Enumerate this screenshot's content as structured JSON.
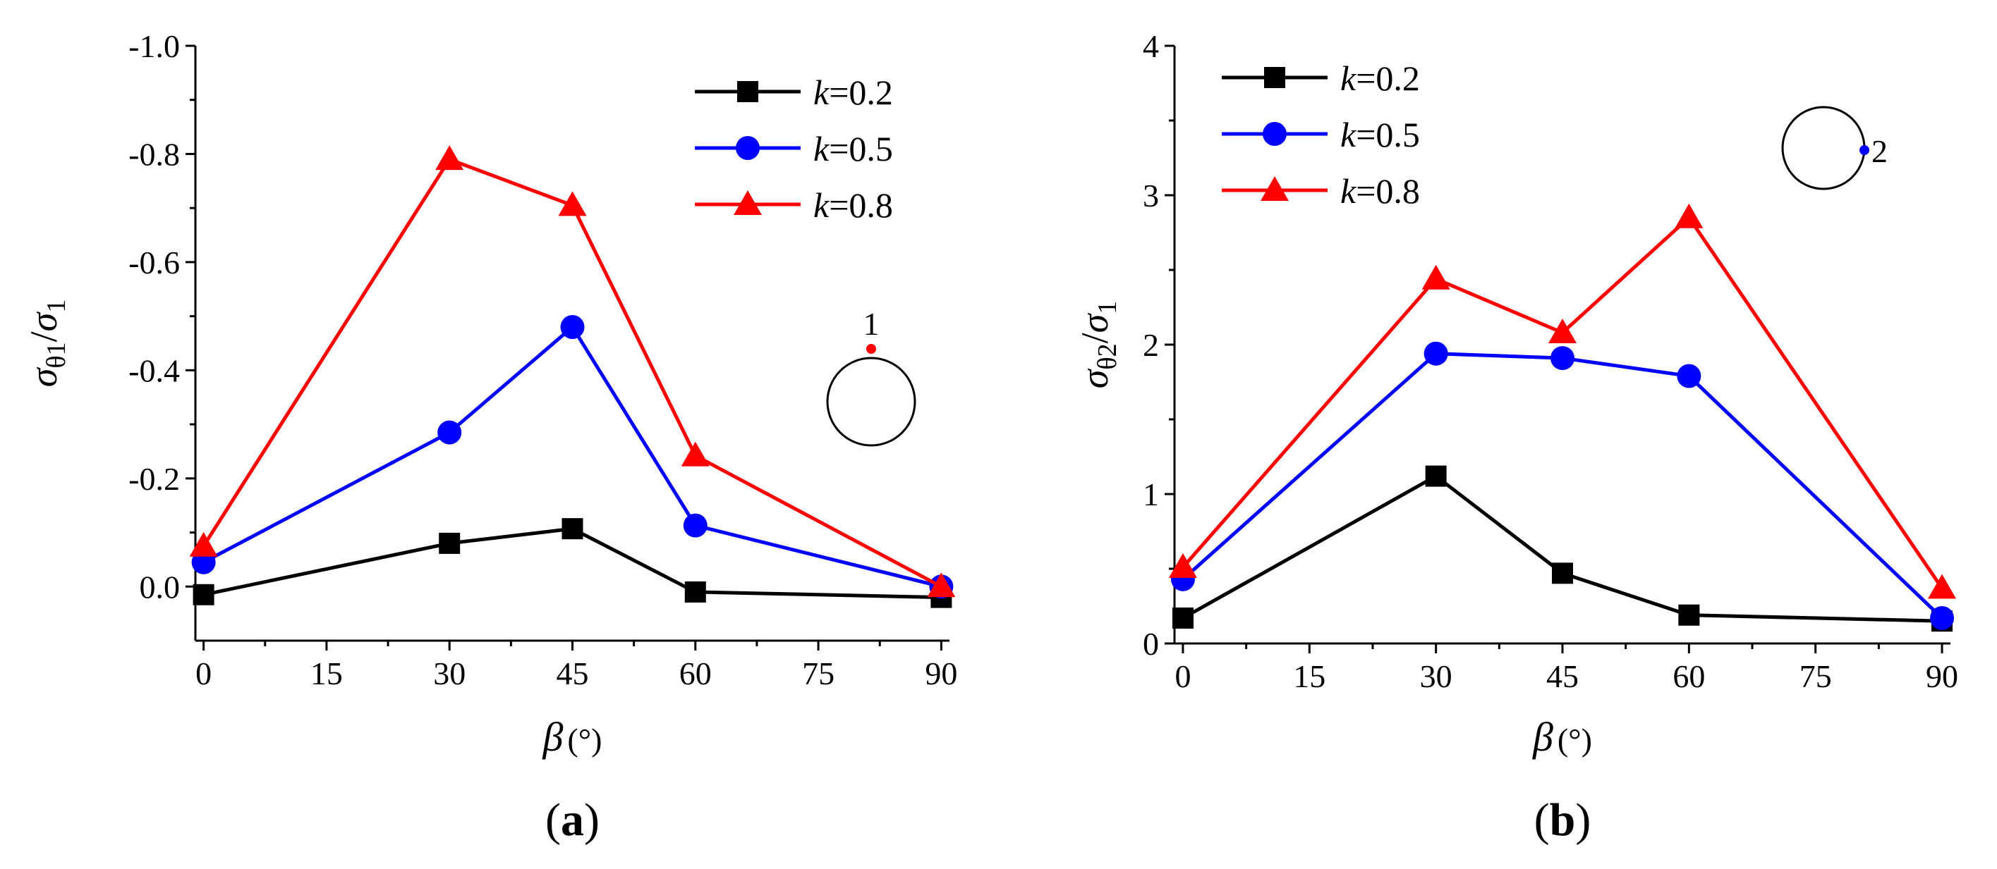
{
  "chart_data": [
    {
      "type": "line",
      "panel_label": "(a)",
      "panel_letter": "a",
      "title": "",
      "xlabel": "β (°)",
      "xlabel_symbol": "β",
      "xlabel_unit": "(°)",
      "ylabel": "σθ1/σ1",
      "ylabel_parts": {
        "sigma": "σ",
        "sub1": "θ1",
        "slash": "/",
        "sub2": "1"
      },
      "x": [
        0,
        30,
        45,
        60,
        90
      ],
      "xlim": [
        -1,
        91
      ],
      "ylim": [
        0.1,
        -1.0
      ],
      "y_reversed": true,
      "xticks": [
        0,
        15,
        30,
        45,
        60,
        75,
        90
      ],
      "xtick_labels": [
        "0",
        "15",
        "30",
        "45",
        "60",
        "75",
        "90"
      ],
      "yticks": [
        0.0,
        -0.2,
        -0.4,
        -0.6,
        -0.8,
        -1.0
      ],
      "ytick_labels": [
        "0.0",
        "-0.2",
        "-0.4",
        "-0.6",
        "-0.8",
        "-1.0"
      ],
      "legend_position": "top-right",
      "series": [
        {
          "name": "k=0.2",
          "k_symbol": "k",
          "k_value": "=0.2",
          "color": "#000000",
          "marker": "square",
          "values": [
            0.015,
            -0.08,
            -0.107,
            0.01,
            0.02
          ]
        },
        {
          "name": "k=0.5",
          "k_symbol": "k",
          "k_value": "=0.5",
          "color": "#0000ff",
          "marker": "circle",
          "values": [
            -0.045,
            -0.285,
            -0.48,
            -0.113,
            0.0
          ]
        },
        {
          "name": "k=0.8",
          "k_symbol": "k",
          "k_value": "=0.8",
          "color": "#ff0000",
          "marker": "triangle",
          "values": [
            -0.075,
            -0.79,
            -0.705,
            -0.242,
            0.0
          ]
        }
      ],
      "annotation": {
        "label": "1",
        "dot_color": "#ff0000",
        "description": "circle with point 1 at top"
      }
    },
    {
      "type": "line",
      "panel_label": "(b)",
      "panel_letter": "b",
      "title": "",
      "xlabel": "β (°)",
      "xlabel_symbol": "β",
      "xlabel_unit": "(°)",
      "ylabel": "σθ2/σ1",
      "ylabel_parts": {
        "sigma": "σ",
        "sub1": "θ2",
        "slash": "/",
        "sub2": "1"
      },
      "x": [
        0,
        30,
        45,
        60,
        90
      ],
      "xlim": [
        -1,
        91
      ],
      "ylim": [
        0,
        4
      ],
      "y_reversed": false,
      "xticks": [
        0,
        15,
        30,
        45,
        60,
        75,
        90
      ],
      "xtick_labels": [
        "0",
        "15",
        "30",
        "45",
        "60",
        "75",
        "90"
      ],
      "yticks": [
        0,
        1,
        2,
        3,
        4
      ],
      "ytick_labels": [
        "0",
        "1",
        "2",
        "3",
        "4"
      ],
      "legend_position": "top-left",
      "series": [
        {
          "name": "k=0.2",
          "k_symbol": "k",
          "k_value": "=0.2",
          "color": "#000000",
          "marker": "square",
          "values": [
            0.17,
            1.12,
            0.47,
            0.19,
            0.15
          ]
        },
        {
          "name": "k=0.5",
          "k_symbol": "k",
          "k_value": "=0.5",
          "color": "#0000ff",
          "marker": "circle",
          "values": [
            0.43,
            1.94,
            1.91,
            1.79,
            0.17
          ]
        },
        {
          "name": "k=0.8",
          "k_symbol": "k",
          "k_value": "=0.8",
          "color": "#ff0000",
          "marker": "triangle",
          "values": [
            0.51,
            2.44,
            2.08,
            2.85,
            0.37
          ]
        }
      ],
      "annotation": {
        "label": "2",
        "dot_color": "#0000ff",
        "description": "circle with point 2 at right"
      }
    }
  ]
}
